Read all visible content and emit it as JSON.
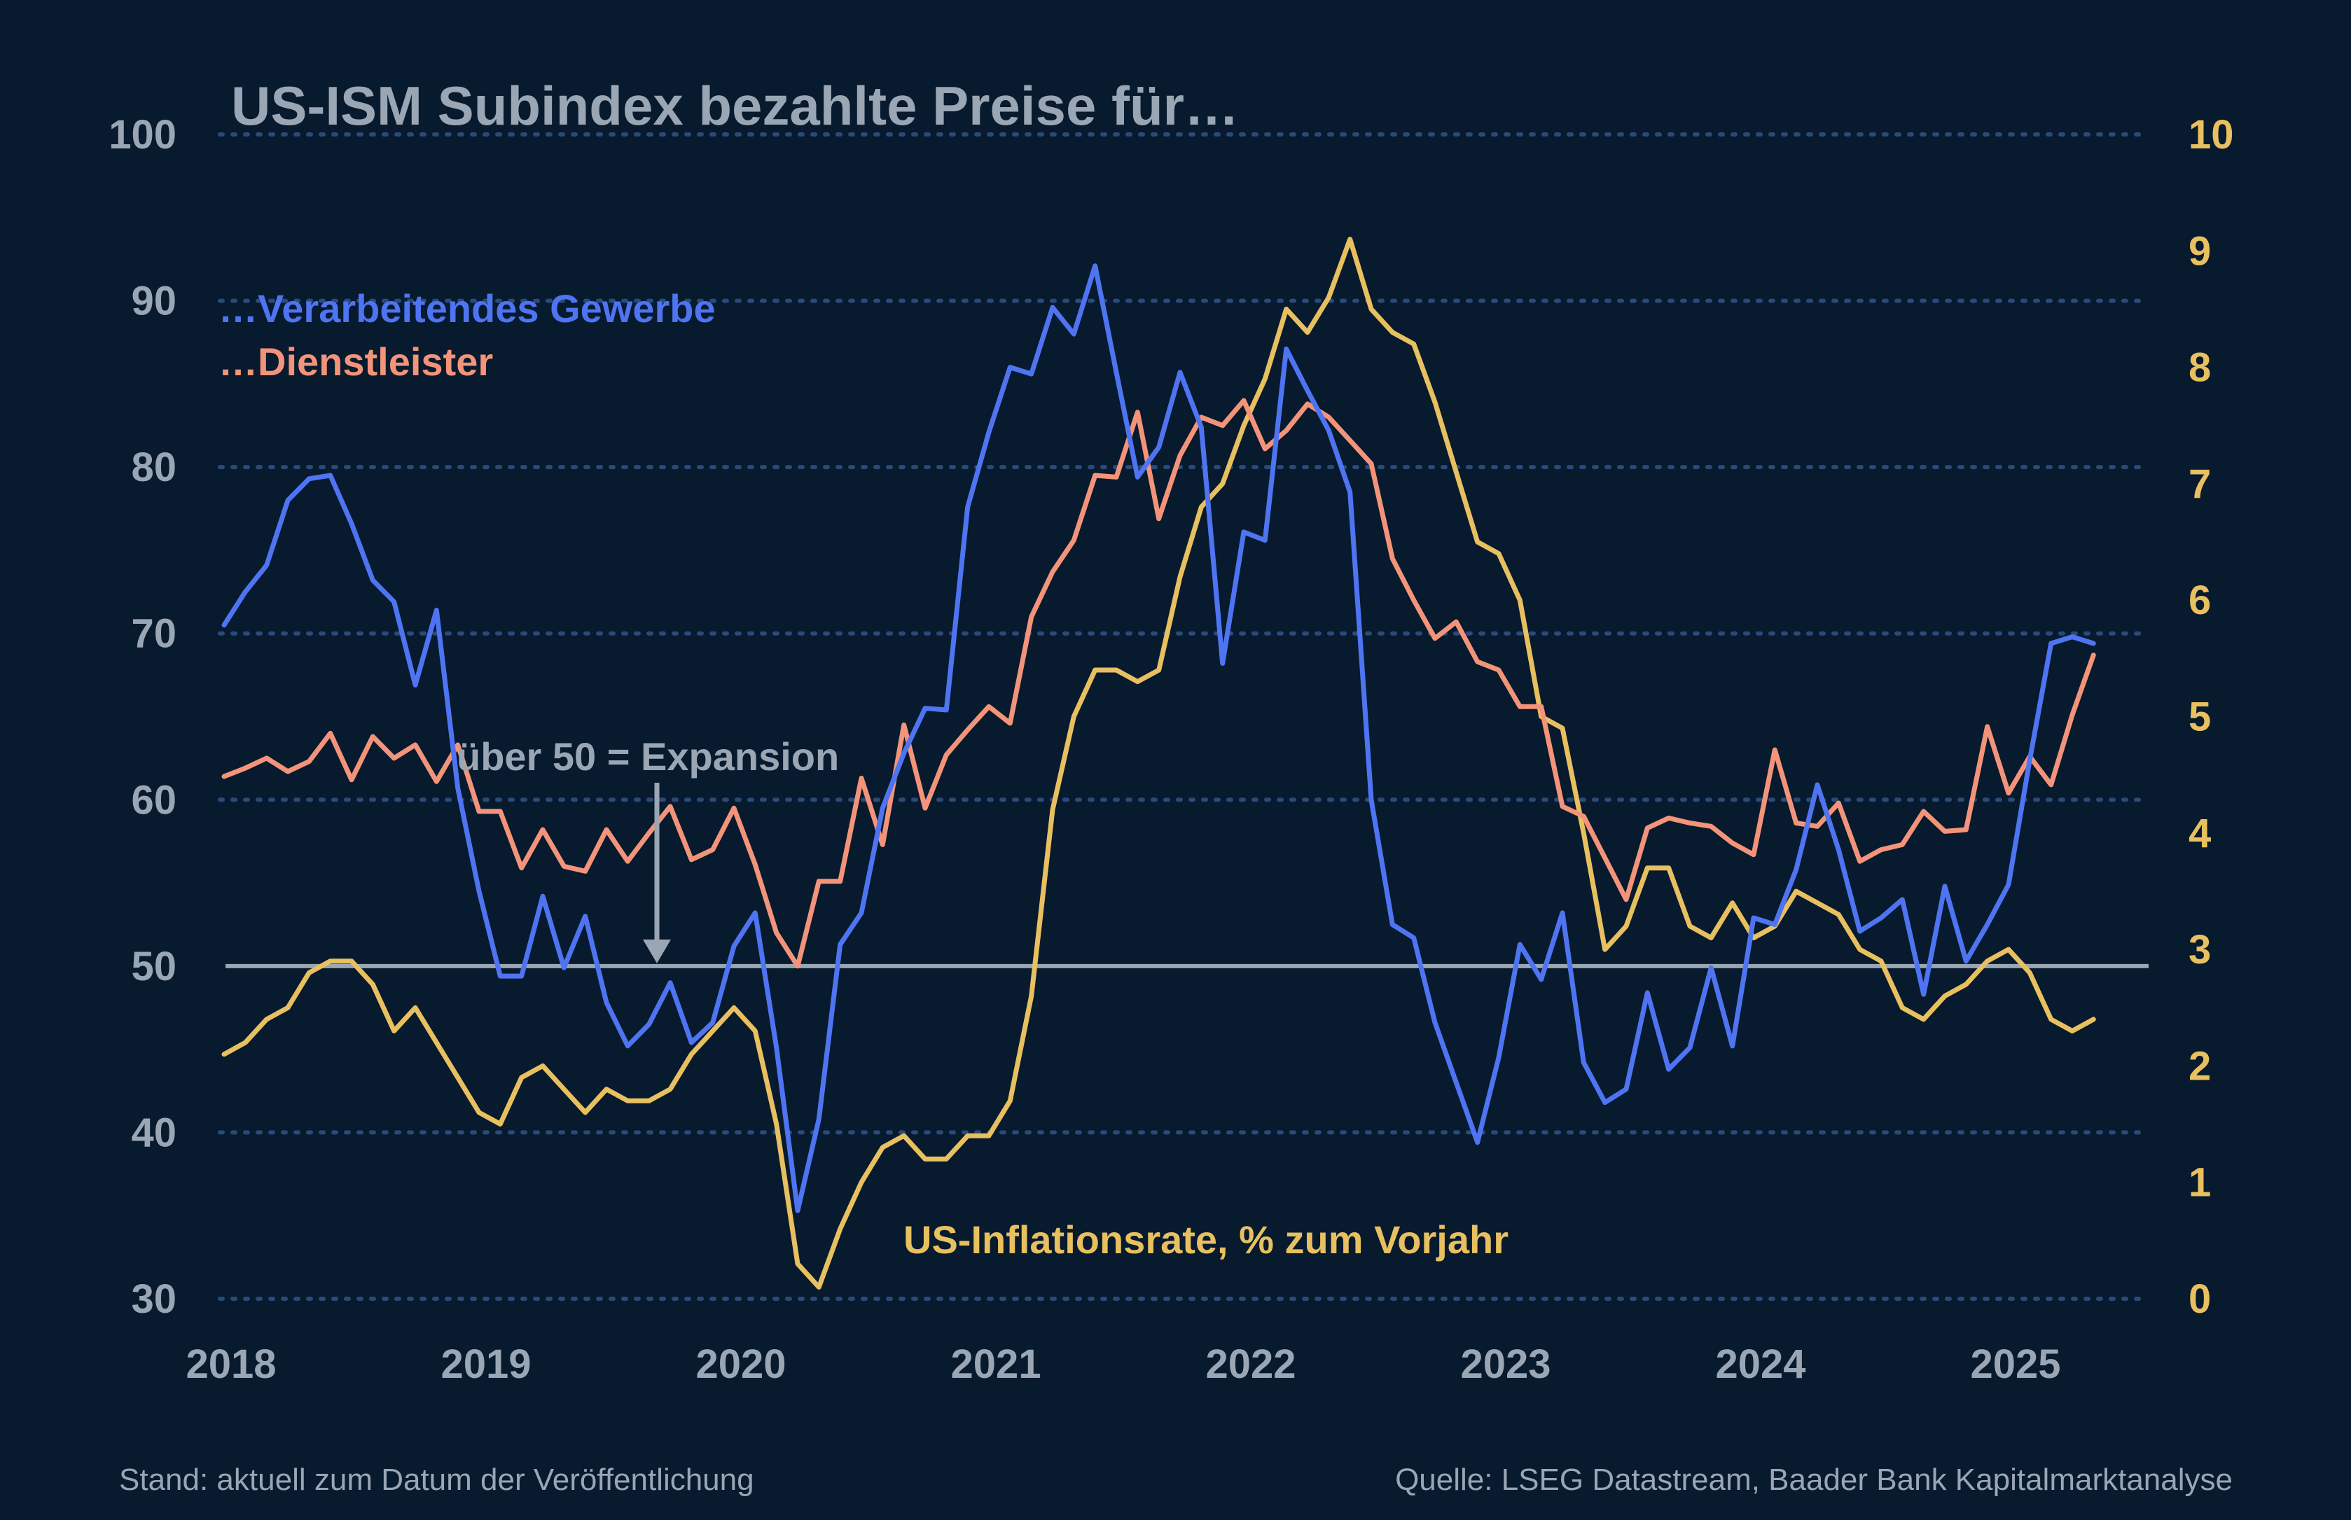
{
  "chart_data": {
    "type": "line",
    "title": "US-ISM Subindex bezahlte Preise für…",
    "colors": {
      "background": "#071a2e",
      "title": "#9aa6b3",
      "axis_left": "#9aa6b3",
      "axis_right": "#e8c060",
      "grid": "#2a4a7a",
      "reference": "#9aa6b3"
    },
    "y_left": {
      "lim": [
        30,
        100
      ],
      "ticks": [
        30,
        40,
        50,
        60,
        70,
        80,
        90,
        100
      ]
    },
    "y_right": {
      "lim": [
        0,
        10
      ],
      "ticks": [
        0,
        1,
        2,
        3,
        4,
        5,
        6,
        7,
        8,
        9,
        10
      ]
    },
    "x_ticks": [
      "2018",
      "2019",
      "2020",
      "2021",
      "2022",
      "2023",
      "2024",
      "2025"
    ],
    "grid": "horizontal dotted",
    "reference_line": {
      "value": 50,
      "label": "über 50 = Expansion"
    },
    "series": [
      {
        "name": "…Verarbeitendes Gewerbe",
        "color": "#4f74f2",
        "axis": "left",
        "x": [
          "2018-01",
          "2018-02",
          "2018-03",
          "2018-04",
          "2018-05",
          "2018-06",
          "2018-07",
          "2018-08",
          "2018-09",
          "2018-10",
          "2018-11",
          "2018-12",
          "2019-01",
          "2019-02",
          "2019-03",
          "2019-04",
          "2019-05",
          "2019-06",
          "2019-07",
          "2019-08",
          "2019-09",
          "2019-10",
          "2019-11",
          "2019-12",
          "2020-01",
          "2020-02",
          "2020-03",
          "2020-04",
          "2020-05",
          "2020-06",
          "2020-07",
          "2020-08",
          "2020-09",
          "2020-10",
          "2020-11",
          "2020-12",
          "2021-01",
          "2021-02",
          "2021-03",
          "2021-04",
          "2021-05",
          "2021-06",
          "2021-07",
          "2021-08",
          "2021-09",
          "2021-10",
          "2021-11",
          "2021-12",
          "2022-01",
          "2022-02",
          "2022-03",
          "2022-04",
          "2022-05",
          "2022-06",
          "2022-07",
          "2022-08",
          "2022-09",
          "2022-10",
          "2022-11",
          "2022-12",
          "2023-01",
          "2023-02",
          "2023-03",
          "2023-04",
          "2023-05",
          "2023-06",
          "2023-07",
          "2023-08",
          "2023-09",
          "2023-10",
          "2023-11",
          "2023-12",
          "2024-01",
          "2024-02",
          "2024-03",
          "2024-04",
          "2024-05",
          "2024-06",
          "2024-07",
          "2024-08",
          "2024-09",
          "2024-10",
          "2024-11",
          "2024-12",
          "2025-01",
          "2025-02",
          "2025-03",
          "2025-04",
          "2025-05"
        ],
        "y": [
          70.5,
          72.5,
          74.1,
          78.0,
          79.3,
          79.5,
          76.6,
          73.2,
          71.9,
          66.9,
          71.4,
          60.7,
          54.5,
          49.4,
          49.4,
          54.2,
          49.9,
          53.0,
          47.8,
          45.2,
          46.5,
          49.0,
          45.4,
          46.6,
          51.2,
          53.2,
          45.1,
          35.3,
          40.8,
          51.3,
          53.2,
          59.5,
          62.8,
          65.5,
          65.4,
          77.6,
          82.1,
          86.0,
          85.6,
          89.6,
          88.0,
          92.1,
          85.7,
          79.4,
          81.2,
          85.7,
          82.4,
          68.2,
          76.1,
          75.6,
          87.1,
          84.6,
          82.2,
          78.5,
          60.0,
          52.5,
          51.7,
          46.6,
          43.0,
          39.4,
          44.5,
          51.3,
          49.2,
          53.2,
          44.2,
          41.8,
          42.6,
          48.4,
          43.8,
          45.1,
          49.9,
          45.2,
          52.9,
          52.5,
          55.8,
          60.9,
          57.0,
          52.1,
          52.9,
          54.0,
          48.3,
          54.8,
          50.3,
          52.5,
          54.9,
          62.4,
          69.4,
          69.8,
          69.4
        ]
      },
      {
        "name": "…Dienstleister",
        "color": "#f3947a",
        "axis": "left",
        "x": [
          "2018-01",
          "2018-02",
          "2018-03",
          "2018-04",
          "2018-05",
          "2018-06",
          "2018-07",
          "2018-08",
          "2018-09",
          "2018-10",
          "2018-11",
          "2018-12",
          "2019-01",
          "2019-02",
          "2019-03",
          "2019-04",
          "2019-05",
          "2019-06",
          "2019-07",
          "2019-08",
          "2019-09",
          "2019-10",
          "2019-11",
          "2019-12",
          "2020-01",
          "2020-02",
          "2020-03",
          "2020-04",
          "2020-05",
          "2020-06",
          "2020-07",
          "2020-08",
          "2020-09",
          "2020-10",
          "2020-11",
          "2020-12",
          "2021-01",
          "2021-02",
          "2021-03",
          "2021-04",
          "2021-05",
          "2021-06",
          "2021-07",
          "2021-08",
          "2021-09",
          "2021-10",
          "2021-11",
          "2021-12",
          "2022-01",
          "2022-02",
          "2022-03",
          "2022-04",
          "2022-05",
          "2022-06",
          "2022-07",
          "2022-08",
          "2022-09",
          "2022-10",
          "2022-11",
          "2022-12",
          "2023-01",
          "2023-02",
          "2023-03",
          "2023-04",
          "2023-05",
          "2023-06",
          "2023-07",
          "2023-08",
          "2023-09",
          "2023-10",
          "2023-11",
          "2023-12",
          "2024-01",
          "2024-02",
          "2024-03",
          "2024-04",
          "2024-05",
          "2024-06",
          "2024-07",
          "2024-08",
          "2024-09",
          "2024-10",
          "2024-11",
          "2024-12",
          "2025-01",
          "2025-02",
          "2025-03",
          "2025-04",
          "2025-05"
        ],
        "y": [
          61.4,
          61.9,
          62.5,
          61.7,
          62.3,
          64.0,
          61.2,
          63.8,
          62.5,
          63.3,
          61.1,
          63.3,
          59.3,
          59.3,
          55.9,
          58.2,
          56.0,
          55.7,
          58.2,
          56.3,
          58.0,
          59.6,
          56.4,
          57.0,
          59.5,
          56.1,
          52.0,
          50.0,
          55.1,
          55.1,
          61.3,
          57.3,
          64.5,
          59.5,
          62.7,
          64.2,
          65.6,
          64.6,
          71.0,
          73.7,
          75.6,
          79.5,
          79.4,
          83.3,
          76.9,
          80.7,
          83.0,
          82.5,
          84.0,
          81.1,
          82.2,
          83.8,
          83.0,
          81.6,
          80.2,
          74.5,
          72.0,
          69.7,
          70.7,
          68.3,
          67.8,
          65.6,
          65.6,
          59.6,
          59.0,
          56.5,
          54.0,
          58.3,
          58.9,
          58.6,
          58.4,
          57.4,
          56.7,
          63.0,
          58.6,
          58.4,
          59.8,
          56.3,
          57.0,
          57.3,
          59.3,
          58.1,
          58.2,
          64.4,
          60.4,
          62.6,
          60.9,
          65.1,
          68.7
        ]
      },
      {
        "name": "US-Inflationsrate, % zum Vorjahr",
        "color": "#e8c060",
        "axis": "right",
        "x": [
          "2018-01",
          "2018-02",
          "2018-03",
          "2018-04",
          "2018-05",
          "2018-06",
          "2018-07",
          "2018-08",
          "2018-09",
          "2018-10",
          "2018-11",
          "2018-12",
          "2019-01",
          "2019-02",
          "2019-03",
          "2019-04",
          "2019-05",
          "2019-06",
          "2019-07",
          "2019-08",
          "2019-09",
          "2019-10",
          "2019-11",
          "2019-12",
          "2020-01",
          "2020-02",
          "2020-03",
          "2020-04",
          "2020-05",
          "2020-06",
          "2020-07",
          "2020-08",
          "2020-09",
          "2020-10",
          "2020-11",
          "2020-12",
          "2021-01",
          "2021-02",
          "2021-03",
          "2021-04",
          "2021-05",
          "2021-06",
          "2021-07",
          "2021-08",
          "2021-09",
          "2021-10",
          "2021-11",
          "2021-12",
          "2022-01",
          "2022-02",
          "2022-03",
          "2022-04",
          "2022-05",
          "2022-06",
          "2022-07",
          "2022-08",
          "2022-09",
          "2022-10",
          "2022-11",
          "2022-12",
          "2023-01",
          "2023-02",
          "2023-03",
          "2023-04",
          "2023-05",
          "2023-06",
          "2023-07",
          "2023-08",
          "2023-09",
          "2023-10",
          "2023-11",
          "2023-12",
          "2024-01",
          "2024-02",
          "2024-03",
          "2024-04",
          "2024-05",
          "2024-06",
          "2024-07",
          "2024-08",
          "2024-09",
          "2024-10",
          "2024-11",
          "2024-12",
          "2025-01",
          "2025-02",
          "2025-03",
          "2025-04",
          "2025-05"
        ],
        "y": [
          2.1,
          2.2,
          2.4,
          2.5,
          2.8,
          2.9,
          2.9,
          2.7,
          2.3,
          2.5,
          2.2,
          1.9,
          1.6,
          1.5,
          1.9,
          2.0,
          1.8,
          1.6,
          1.8,
          1.7,
          1.7,
          1.8,
          2.1,
          2.3,
          2.5,
          2.3,
          1.5,
          0.3,
          0.1,
          0.6,
          1.0,
          1.3,
          1.4,
          1.2,
          1.2,
          1.4,
          1.4,
          1.7,
          2.6,
          4.2,
          5.0,
          5.4,
          5.4,
          5.3,
          5.4,
          6.2,
          6.8,
          7.0,
          7.5,
          7.9,
          8.5,
          8.3,
          8.6,
          9.1,
          8.5,
          8.3,
          8.2,
          7.7,
          7.1,
          6.5,
          6.4,
          6.0,
          5.0,
          4.9,
          4.0,
          3.0,
          3.2,
          3.7,
          3.7,
          3.2,
          3.1,
          3.4,
          3.1,
          3.2,
          3.5,
          3.4,
          3.3,
          3.0,
          2.9,
          2.5,
          2.4,
          2.6,
          2.7,
          2.9,
          3.0,
          2.8,
          2.4,
          2.3,
          2.4
        ]
      }
    ]
  },
  "annotations": {
    "inflation_label": "US-Inflationsrate, % zum Vorjahr",
    "expansion_label": "über 50 = Expansion"
  },
  "footer": {
    "left": "Stand: aktuell zum Datum der Veröffentlichung",
    "right": "Quelle: LSEG Datastream, Baader Bank Kapitalmarktanalyse"
  }
}
